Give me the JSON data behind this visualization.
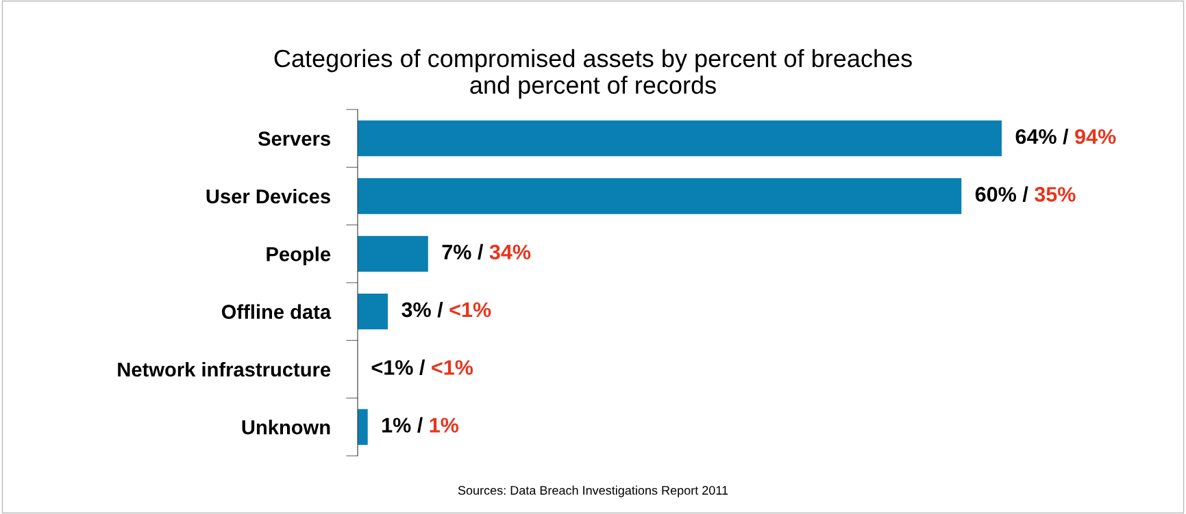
{
  "chart_data": {
    "type": "bar",
    "orientation": "horizontal",
    "title": "Categories of compromised assets by percent of breaches\nand percent of records",
    "categories": [
      "Servers",
      "User Devices",
      "People",
      "Offline data",
      "Network infrastructure",
      "Unknown"
    ],
    "values": [
      64,
      60,
      7,
      3,
      null,
      1
    ],
    "value_labels": [
      "64% / 94%",
      "60% / 35%",
      "7% / 34%",
      "3% / <1%",
      "<1% / <1%",
      "1% / 1%"
    ],
    "color": "#0a80b2",
    "tick_labels": "y",
    "grid": false,
    "annotations": [
      "Sources: Data Breach Investigations Report 2011"
    ]
  }
}
